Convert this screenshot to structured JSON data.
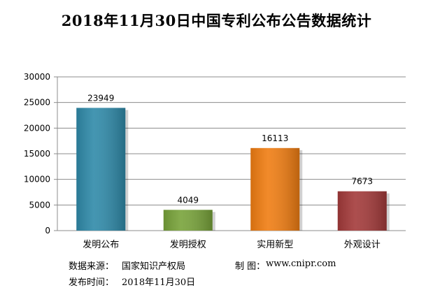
{
  "chart_data": {
    "type": "bar",
    "title": "2018年11月30日中国专利公布公告数据统计",
    "categories": [
      "发明公布",
      "发明授权",
      "实用新型",
      "外观设计"
    ],
    "values": [
      23949,
      4049,
      16113,
      7673
    ],
    "ylim": [
      0,
      30000
    ],
    "yticks": [
      0,
      5000,
      10000,
      15000,
      20000,
      25000,
      30000
    ],
    "grid": true,
    "legend": "none",
    "colors": [
      "#2f8aa9",
      "#78a33a",
      "#f07d12",
      "#a33a3a"
    ]
  },
  "footer": {
    "source_label": "数据来源：",
    "source_value": "国家知识产权局",
    "credit_label": "制 图：",
    "credit_value": "www.cnipr.com",
    "date_label": "发布时间：",
    "date_value": "2018年11月30日"
  }
}
